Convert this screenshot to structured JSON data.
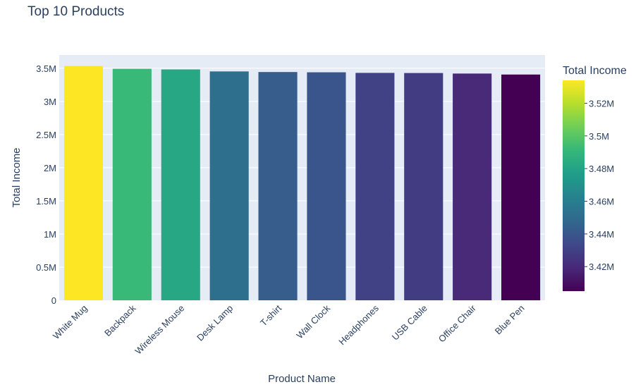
{
  "chart_data": {
    "type": "bar",
    "title": "Top 10 Products",
    "xlabel": "Product Name",
    "ylabel": "Total Income",
    "categories": [
      "White Mug",
      "Backpack",
      "Wireless Mouse",
      "Desk Lamp",
      "T-shirt",
      "Wall Clock",
      "Headphones",
      "USB Cable",
      "Office Chair",
      "Blue Pen"
    ],
    "values": [
      3534000,
      3492000,
      3482000,
      3452000,
      3443000,
      3439000,
      3430000,
      3428000,
      3420000,
      3405000
    ],
    "ylim": [
      0,
      3700000
    ],
    "yticks": [
      0,
      500000,
      1000000,
      1500000,
      2000000,
      2500000,
      3000000,
      3500000
    ],
    "ytick_labels": [
      "0",
      "0.5M",
      "1M",
      "1.5M",
      "2M",
      "2.5M",
      "3M",
      "3.5M"
    ],
    "grid": true,
    "colorscale": "Viridis",
    "colorbar": {
      "title": "Total Income",
      "range": [
        3405000,
        3534000
      ],
      "ticks": [
        3420000,
        3440000,
        3460000,
        3480000,
        3500000,
        3520000
      ],
      "tick_labels": [
        "3.42M",
        "3.44M",
        "3.46M",
        "3.48M",
        "3.5M",
        "3.52M"
      ]
    },
    "plot_background": "#e5ecf6"
  }
}
